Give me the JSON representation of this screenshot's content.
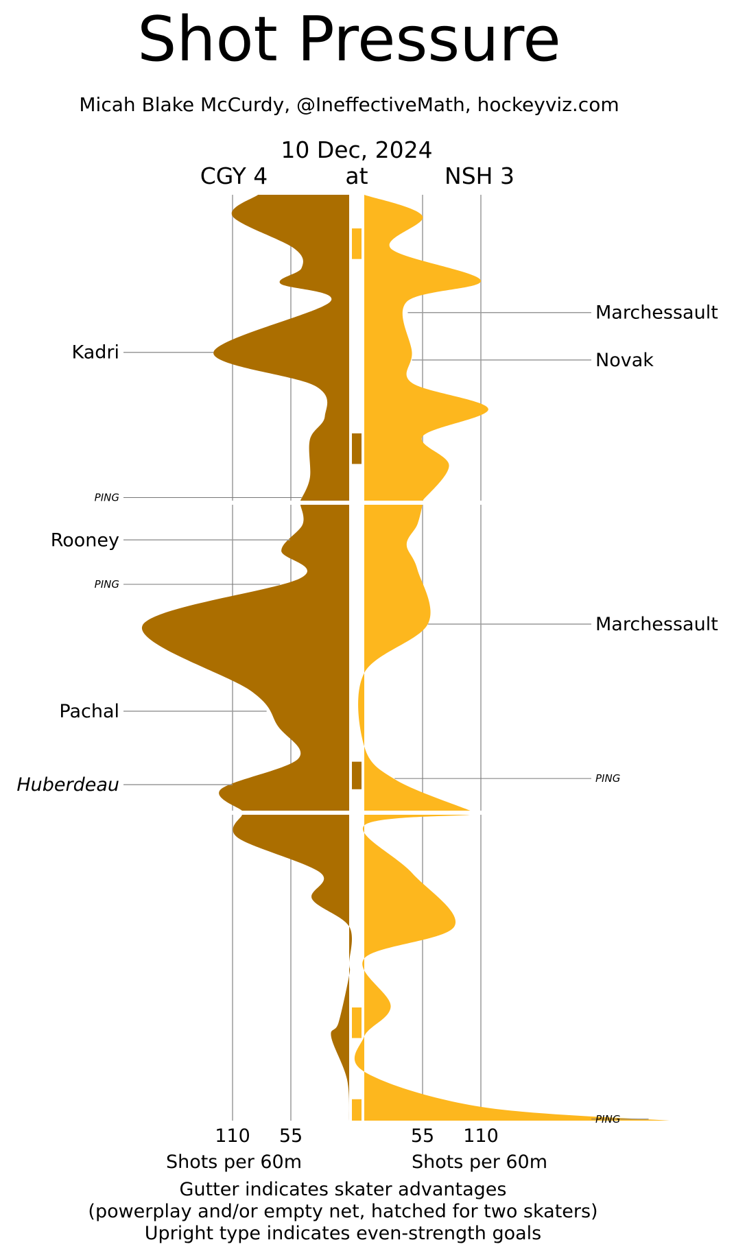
{
  "title": "Shot Pressure",
  "subtitle": "Micah Blake McCurdy, @IneffectiveMath, hockeyviz.com",
  "game": {
    "date": "10 Dec, 2024",
    "away": "CGY 4",
    "at": "at",
    "home": "NSH 3"
  },
  "footer": {
    "xlabel_left": "Shots per 60m",
    "xlabel_right": "Shots per 60m",
    "notes": [
      "Gutter indicates skater advantages",
      "(powerplay and/or empty net, hatched for two skaters)",
      "Upright type indicates even-strength goals"
    ]
  },
  "colors": {
    "away": "#ab6e00",
    "home": "#fdb71e",
    "grid": "#b3b3b3",
    "leader": "#999999"
  },
  "chart_data": {
    "type": "area",
    "orientation": "vertical-time",
    "x_unit": "Shots per 60m",
    "x_ticks": [
      55,
      110
    ],
    "x_max": 110,
    "periods": [
      {
        "start": 0,
        "end": 20
      },
      {
        "start": 20,
        "end": 40
      },
      {
        "start": 40,
        "end": 60
      }
    ],
    "series": [
      {
        "name": "CGY",
        "side": "left",
        "values": [
          [
            0,
            86
          ],
          [
            1.4,
            110
          ],
          [
            3.5,
            52
          ],
          [
            4.8,
            45
          ],
          [
            5.8,
            65
          ],
          [
            7,
            18
          ],
          [
            10.3,
            128
          ],
          [
            12.5,
            32
          ],
          [
            14.5,
            23
          ],
          [
            16,
            37
          ],
          [
            18.5,
            37
          ],
          [
            20,
            46
          ],
          [
            21.3,
            44
          ],
          [
            23,
            64
          ],
          [
            24.8,
            46
          ],
          [
            27.9,
            195
          ],
          [
            32.2,
            92
          ],
          [
            34.5,
            67
          ],
          [
            36.6,
            48
          ],
          [
            38.6,
            121
          ],
          [
            40,
            101
          ],
          [
            41.5,
            105
          ],
          [
            43.8,
            27
          ],
          [
            45.5,
            35
          ],
          [
            47.3,
            0
          ],
          [
            49.7,
            0
          ],
          [
            50.5,
            0
          ],
          [
            53.6,
            10
          ],
          [
            54.5,
            17
          ],
          [
            57.3,
            2
          ],
          [
            60,
            0
          ]
        ]
      },
      {
        "name": "NSH",
        "side": "right",
        "values": [
          [
            0,
            0
          ],
          [
            1.4,
            55
          ],
          [
            3.5,
            25
          ],
          [
            5.6,
            110
          ],
          [
            7,
            40
          ],
          [
            10.3,
            45
          ],
          [
            12.3,
            45
          ],
          [
            14,
            117
          ],
          [
            15.8,
            55
          ],
          [
            17.7,
            80
          ],
          [
            20,
            55
          ],
          [
            21.3,
            50
          ],
          [
            22.6,
            40
          ],
          [
            24.2,
            50
          ],
          [
            27.8,
            60
          ],
          [
            31,
            0
          ],
          [
            35.8,
            0
          ],
          [
            38,
            30
          ],
          [
            40,
            100
          ],
          [
            40.7,
            0
          ],
          [
            43.8,
            45
          ],
          [
            47.3,
            85
          ],
          [
            49.4,
            0
          ],
          [
            52.5,
            25
          ],
          [
            54.5,
            0
          ],
          [
            56.8,
            0
          ],
          [
            59.1,
            110
          ],
          [
            60,
            288
          ]
        ]
      }
    ],
    "advantages": [
      {
        "team": "NSH",
        "start": 2.2,
        "end": 4.2
      },
      {
        "team": "CGY",
        "start": 15.6,
        "end": 17.6
      },
      {
        "team": "CGY",
        "start": 36.8,
        "end": 38.6
      },
      {
        "team": "NSH",
        "start": 52.6,
        "end": 54.6
      },
      {
        "team": "NSH",
        "start": 58.6,
        "end": 60
      }
    ],
    "goals": [
      {
        "team": "CGY",
        "player": "Kadri",
        "time": 10.3,
        "even_strength": true
      },
      {
        "team": "CGY",
        "player": "PING",
        "time": 19.8,
        "even_strength": false,
        "small": true
      },
      {
        "team": "CGY",
        "player": "Rooney",
        "time": 22.3,
        "even_strength": true
      },
      {
        "team": "CGY",
        "player": "PING",
        "time": 25.2,
        "even_strength": false,
        "small": true
      },
      {
        "team": "CGY",
        "player": "Pachal",
        "time": 33.5,
        "even_strength": true
      },
      {
        "team": "CGY",
        "player": "Huberdeau",
        "time": 38.3,
        "even_strength": false
      },
      {
        "team": "NSH",
        "player": "Marchessault",
        "time": 7.7,
        "even_strength": true
      },
      {
        "team": "NSH",
        "player": "Novak",
        "time": 10.8,
        "even_strength": true
      },
      {
        "team": "NSH",
        "player": "Marchessault",
        "time": 27.8,
        "even_strength": true
      },
      {
        "team": "NSH",
        "player": "PING",
        "time": 37.9,
        "even_strength": false,
        "small": true
      },
      {
        "team": "NSH",
        "player": "PING",
        "time": 59.9,
        "even_strength": false,
        "small": true
      }
    ]
  }
}
